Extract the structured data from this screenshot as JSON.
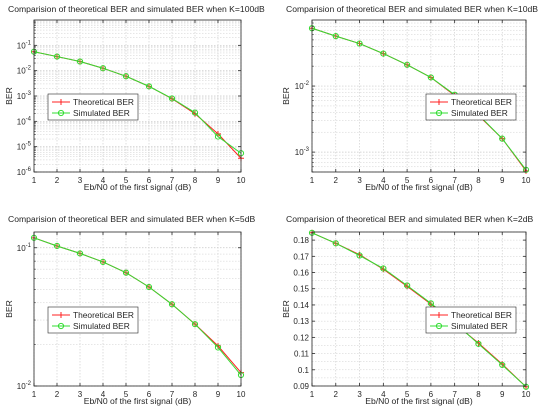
{
  "colors": {
    "theoretical": "#ff2020",
    "simulated": "#33dd33",
    "axis": "#262626",
    "grid": "#c8c8c8",
    "background": "#ffffff"
  },
  "chart_data": [
    {
      "type": "line",
      "title": "Comparision of theoretical BER and simulated BER when K=100dB",
      "xlabel": "Eb/N0 of the first signal (dB)",
      "ylabel": "BER",
      "xlim": [
        1,
        10
      ],
      "ylim": [
        1e-06,
        1
      ],
      "yscale": "log",
      "x_ticks": [
        "1",
        "2",
        "3",
        "4",
        "5",
        "6",
        "7",
        "8",
        "9",
        "10"
      ],
      "y_ticks": [
        {
          "value": 1e-06,
          "base": "10",
          "exp": "-6"
        },
        {
          "value": 1e-05,
          "base": "10",
          "exp": "-5"
        },
        {
          "value": 0.0001,
          "base": "10",
          "exp": "-4"
        },
        {
          "value": 0.001,
          "base": "10",
          "exp": "-3"
        },
        {
          "value": 0.01,
          "base": "10",
          "exp": "-2"
        },
        {
          "value": 0.1,
          "base": "10",
          "exp": "-1"
        }
      ],
      "grid": true,
      "legend": "middle-left",
      "x": [
        1,
        2,
        3,
        4,
        5,
        6,
        7,
        8,
        9,
        10
      ],
      "series": [
        {
          "name": "Theoretical BER",
          "marker": "plus",
          "values": [
            0.056,
            0.036,
            0.023,
            0.0125,
            0.006,
            0.0024,
            0.00078,
            0.0002,
            3.2e-05,
            3.5e-06
          ]
        },
        {
          "name": "Simulated BER",
          "marker": "circle",
          "values": [
            0.056,
            0.036,
            0.023,
            0.0125,
            0.006,
            0.0024,
            0.0008,
            0.00022,
            2.5e-05,
            5.5e-06
          ]
        }
      ]
    },
    {
      "type": "line",
      "title": "Comparision of theoretical BER and simulated BER when K=10dB",
      "xlabel": "Eb/N0 of the first signal (dB)",
      "ylabel": "BER",
      "xlim": [
        1,
        10
      ],
      "ylim": [
        0.0005,
        0.1
      ],
      "yscale": "log",
      "x_ticks": [
        "1",
        "2",
        "3",
        "4",
        "5",
        "6",
        "7",
        "8",
        "9",
        "10"
      ],
      "y_ticks": [
        {
          "value": 0.01,
          "base": "10",
          "exp": "-2"
        },
        {
          "value": 0.001,
          "base": "10",
          "exp": "-3"
        }
      ],
      "grid": true,
      "legend": "middle-right",
      "x": [
        1,
        2,
        3,
        4,
        5,
        6,
        7,
        8,
        9,
        10
      ],
      "series": [
        {
          "name": "Theoretical BER",
          "marker": "plus",
          "values": [
            0.075,
            0.057,
            0.044,
            0.031,
            0.021,
            0.0135,
            0.0072,
            0.0036,
            0.0016,
            0.00052
          ]
        },
        {
          "name": "Simulated BER",
          "marker": "circle",
          "values": [
            0.075,
            0.057,
            0.044,
            0.031,
            0.021,
            0.0135,
            0.0074,
            0.0037,
            0.0016,
            0.00054
          ]
        }
      ]
    },
    {
      "type": "line",
      "title": "Comparision of theoretical BER and simulated BER when K=5dB",
      "xlabel": "Eb/N0 of the first signal (dB)",
      "ylabel": "BER",
      "xlim": [
        1,
        10
      ],
      "ylim": [
        0.01,
        0.13
      ],
      "yscale": "log",
      "x_ticks": [
        "1",
        "2",
        "3",
        "4",
        "5",
        "6",
        "7",
        "8",
        "9",
        "10"
      ],
      "y_ticks": [
        {
          "value": 0.1,
          "base": "10",
          "exp": "-1"
        },
        {
          "value": 0.01,
          "base": "10",
          "exp": "-2"
        }
      ],
      "grid": true,
      "legend": "middle-left",
      "x": [
        1,
        2,
        3,
        4,
        5,
        6,
        7,
        8,
        9,
        10
      ],
      "series": [
        {
          "name": "Theoretical BER",
          "marker": "plus",
          "values": [
            0.118,
            0.103,
            0.091,
            0.079,
            0.066,
            0.052,
            0.039,
            0.028,
            0.0195,
            0.0125
          ]
        },
        {
          "name": "Simulated BER",
          "marker": "circle",
          "values": [
            0.118,
            0.103,
            0.091,
            0.079,
            0.066,
            0.052,
            0.039,
            0.028,
            0.019,
            0.012
          ]
        }
      ]
    },
    {
      "type": "line",
      "title": "Comparision of theoretical BER and simulated BER when K=2dB",
      "xlabel": "Eb/N0 of the first signal (dB)",
      "ylabel": "BER",
      "xlim": [
        1,
        10
      ],
      "ylim": [
        0.09,
        0.185
      ],
      "yscale": "linear",
      "x_ticks": [
        "1",
        "2",
        "3",
        "4",
        "5",
        "6",
        "7",
        "8",
        "9",
        "10"
      ],
      "y_ticks": [
        {
          "value": 0.09,
          "label": "0.09"
        },
        {
          "value": 0.1,
          "label": "0.1"
        },
        {
          "value": 0.11,
          "label": "0.11"
        },
        {
          "value": 0.12,
          "label": "0.12"
        },
        {
          "value": 0.13,
          "label": "0.13"
        },
        {
          "value": 0.14,
          "label": "0.14"
        },
        {
          "value": 0.15,
          "label": "0.15"
        },
        {
          "value": 0.16,
          "label": "0.16"
        },
        {
          "value": 0.17,
          "label": "0.17"
        },
        {
          "value": 0.18,
          "label": "0.18"
        }
      ],
      "grid": true,
      "legend": "middle-right",
      "x": [
        1,
        2,
        3,
        4,
        5,
        6,
        7,
        8,
        9,
        10
      ],
      "series": [
        {
          "name": "Theoretical BER",
          "marker": "plus",
          "values": [
            0.1845,
            0.178,
            0.171,
            0.162,
            0.1515,
            0.1405,
            0.1285,
            0.1165,
            0.1035,
            0.0895
          ]
        },
        {
          "name": "Simulated BER",
          "marker": "circle",
          "values": [
            0.1845,
            0.178,
            0.1705,
            0.1625,
            0.152,
            0.141,
            0.129,
            0.116,
            0.103,
            0.0895
          ]
        }
      ]
    }
  ]
}
